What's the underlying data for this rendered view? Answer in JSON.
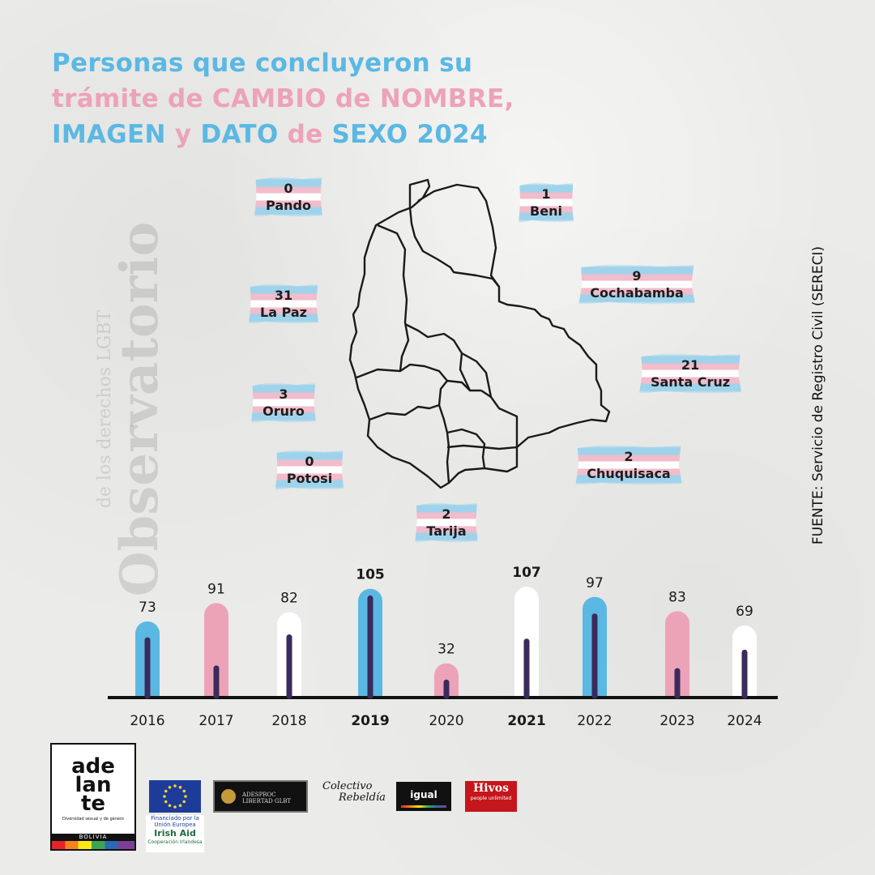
{
  "title": {
    "line1": [
      {
        "text": "Personas que concluyeron su",
        "color": "blue"
      }
    ],
    "line2": [
      {
        "text": "trámite de ",
        "color": "pink"
      },
      {
        "text": "CAMBIO",
        "color": "pink"
      },
      {
        "text": " de ",
        "color": "pink"
      },
      {
        "text": "NOMBRE,",
        "color": "pink"
      }
    ],
    "line3": [
      {
        "text": "IMAGEN",
        "color": "blue"
      },
      {
        "text": " y ",
        "color": "pink"
      },
      {
        "text": "DATO",
        "color": "blue"
      },
      {
        "text": " de ",
        "color": "pink"
      },
      {
        "text": "SEXO 2024",
        "color": "blue"
      }
    ]
  },
  "source": "FUENTE: Servicio de Registro Civil (SERECI)",
  "watermark": {
    "main": "Observatorio",
    "sub": "de los derechos LGBT"
  },
  "departments": [
    {
      "name": "Pando",
      "value": "0"
    },
    {
      "name": "Beni",
      "value": "1"
    },
    {
      "name": "La Paz",
      "value": "31"
    },
    {
      "name": "Cochabamba",
      "value": "9"
    },
    {
      "name": "Santa Cruz",
      "value": "21"
    },
    {
      "name": "Oruro",
      "value": "3"
    },
    {
      "name": "Potosi",
      "value": "0"
    },
    {
      "name": "Chuquisaca",
      "value": "2"
    },
    {
      "name": "Tarija",
      "value": "2"
    }
  ],
  "chart_data": {
    "type": "bar",
    "title": "Personas que concluyeron su trámite de CAMBIO de NOMBRE, IMAGEN y DATO de SEXO 2024",
    "xlabel": "",
    "ylabel": "",
    "categories": [
      "2016",
      "2017",
      "2018",
      "2019",
      "2020",
      "2021",
      "2022",
      "2023",
      "2024"
    ],
    "values": [
      73,
      91,
      82,
      105,
      32,
      107,
      97,
      83,
      69
    ],
    "bold_categories": [
      "2019",
      "2021"
    ],
    "bar_colors": [
      "#5bb8e3",
      "#eda3b7",
      "#ffffff",
      "#5bb8e3",
      "#eda3b7",
      "#ffffff",
      "#5bb8e3",
      "#eda3b7",
      "#ffffff"
    ],
    "inner_line_color": "#3b2a5c",
    "data_labels": true,
    "grid": false
  },
  "colors": {
    "blue": "#5bb8e3",
    "pink": "#eda3b7",
    "ink": "#1a1a1a"
  },
  "logos": {
    "adelante": {
      "line1": "ade",
      "line2": "lan",
      "line3": "te",
      "tagline": "Diversidad sexual y de género",
      "country": "BOLIVIA"
    },
    "eu_caption": "Financiado por la Unión Europea",
    "irish_aid": {
      "name": "Irish Aid",
      "caption": "Cooperación Irlandesa"
    },
    "adesproc": "ADESPROC LIBERTAD GLBT",
    "colectivo": {
      "name": "Colectivo",
      "name2": "Rebeldía"
    },
    "igual": "igual",
    "hivos": {
      "name": "Hivos",
      "tagline": "people unlimited"
    }
  }
}
